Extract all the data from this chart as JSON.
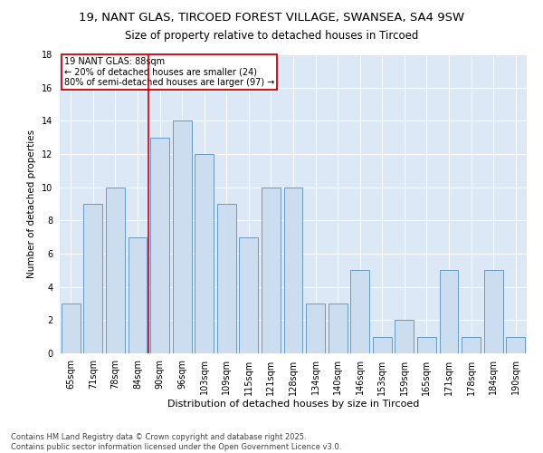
{
  "title1": "19, NANT GLAS, TIRCOED FOREST VILLAGE, SWANSEA, SA4 9SW",
  "title2": "Size of property relative to detached houses in Tircoed",
  "xlabel": "Distribution of detached houses by size in Tircoed",
  "ylabel": "Number of detached properties",
  "bar_labels": [
    "65sqm",
    "71sqm",
    "78sqm",
    "84sqm",
    "90sqm",
    "96sqm",
    "103sqm",
    "109sqm",
    "115sqm",
    "121sqm",
    "128sqm",
    "134sqm",
    "140sqm",
    "146sqm",
    "153sqm",
    "159sqm",
    "165sqm",
    "171sqm",
    "178sqm",
    "184sqm",
    "190sqm"
  ],
  "bar_values": [
    3,
    9,
    10,
    7,
    13,
    14,
    12,
    9,
    7,
    10,
    10,
    3,
    3,
    5,
    1,
    2,
    1,
    5,
    1,
    5,
    1
  ],
  "bar_color": "#ccddf0",
  "bar_edge_color": "#6699cc",
  "vline_x": 3.5,
  "vline_color": "#cc0000",
  "annotation_title": "19 NANT GLAS: 88sqm",
  "annotation_line1": "← 20% of detached houses are smaller (24)",
  "annotation_line2": "80% of semi-detached houses are larger (97) →",
  "annotation_box_color": "#cc0000",
  "ylim": [
    0,
    18
  ],
  "yticks": [
    0,
    2,
    4,
    6,
    8,
    10,
    12,
    14,
    16,
    18
  ],
  "background_color": "#dce8f5",
  "footer": "Contains HM Land Registry data © Crown copyright and database right 2025.\nContains public sector information licensed under the Open Government Licence v3.0.",
  "title1_fontsize": 9.5,
  "title2_fontsize": 8.5,
  "xlabel_fontsize": 8,
  "ylabel_fontsize": 7.5,
  "tick_fontsize": 7,
  "annotation_fontsize": 7,
  "footer_fontsize": 6
}
